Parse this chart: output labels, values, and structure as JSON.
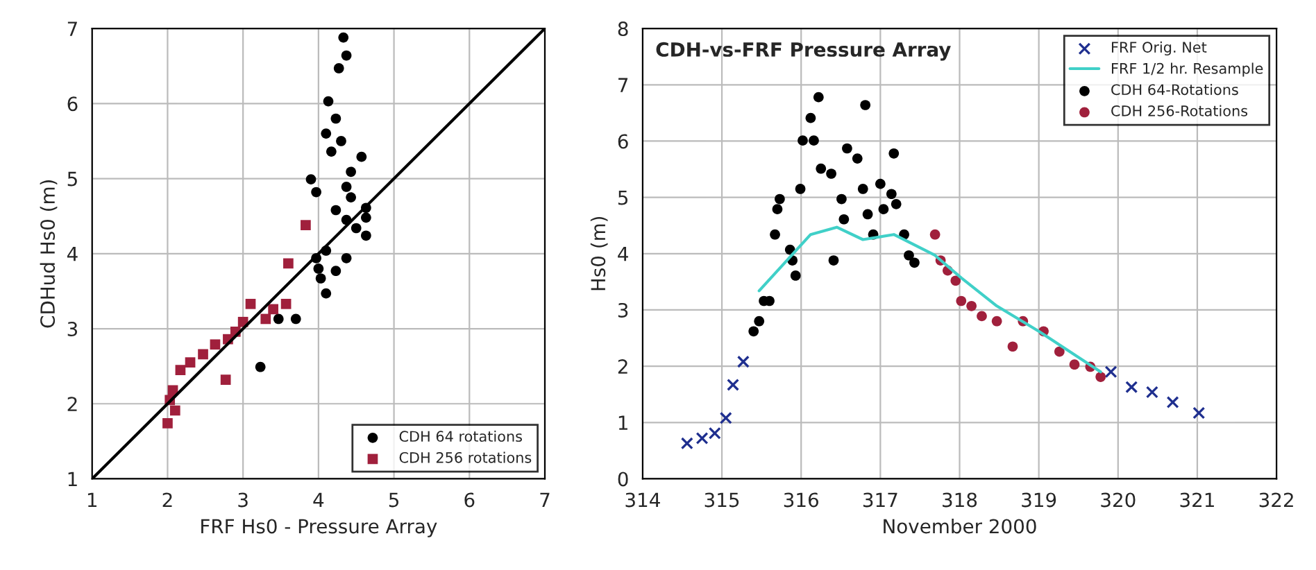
{
  "chart_data": [
    {
      "type": "scatter",
      "xlabel": "FRF Hs0 - Pressure Array",
      "ylabel": "CDHud Hs0 (m)",
      "xlim": [
        1,
        7
      ],
      "ylim": [
        1,
        7
      ],
      "xticks": [
        1,
        2,
        3,
        4,
        5,
        6,
        7
      ],
      "yticks": [
        1,
        2,
        3,
        4,
        5,
        6,
        7
      ],
      "grid": true,
      "legend": "bottom right",
      "series": [
        {
          "name": "CDH 64 rotations",
          "color": "#000000",
          "marker": "circle",
          "x": [
            4.33,
            4.37,
            4.27,
            4.13,
            4.23,
            4.1,
            4.3,
            4.17,
            4.57,
            3.9,
            3.97,
            4.37,
            4.43,
            4.63,
            4.23,
            4.37,
            4.5,
            4.63,
            4.1,
            3.97,
            4.37,
            4.23,
            4.03,
            4.1,
            3.7,
            3.47,
            3.23,
            4.0,
            4.43,
            4.63
          ],
          "values": [
            6.88,
            6.64,
            6.47,
            6.03,
            5.8,
            5.6,
            5.5,
            5.36,
            5.29,
            4.99,
            4.82,
            4.89,
            4.75,
            4.61,
            4.58,
            4.45,
            4.34,
            4.24,
            4.04,
            3.94,
            3.94,
            3.77,
            3.67,
            3.47,
            3.13,
            3.13,
            2.49,
            3.8,
            5.09,
            4.48
          ]
        },
        {
          "name": "CDH 256 rotations",
          "color": "#a0203c",
          "marker": "square",
          "x": [
            3.83,
            3.6,
            3.57,
            3.4,
            3.1,
            3.0,
            2.8,
            2.63,
            2.47,
            2.3,
            2.17,
            2.77,
            2.03,
            2.1,
            2.0,
            2.07,
            2.9,
            3.3
          ],
          "values": [
            4.38,
            3.87,
            3.33,
            3.26,
            3.33,
            3.09,
            2.86,
            2.79,
            2.66,
            2.55,
            2.45,
            2.32,
            2.05,
            1.91,
            1.74,
            2.18,
            2.96,
            3.13
          ]
        },
        {
          "type": "line",
          "color": "#000000",
          "marker": "none",
          "x": [
            1,
            7
          ],
          "values": [
            1,
            7
          ]
        }
      ]
    },
    {
      "type": "scatter",
      "title": "CDH-vs-FRF Pressure Array",
      "xlabel": "November 2000",
      "ylabel": "Hs0 (m)",
      "xlim": [
        314,
        322
      ],
      "ylim": [
        0,
        8
      ],
      "xticks": [
        314,
        315,
        316,
        317,
        318,
        319,
        320,
        321,
        322
      ],
      "yticks": [
        0,
        1,
        2,
        3,
        4,
        5,
        6,
        7,
        8
      ],
      "grid": true,
      "legend": "top right",
      "series": [
        {
          "name": "FRF Orig. Net",
          "color": "#1f2f8f",
          "marker": "cross",
          "x": [
            314.56,
            314.75,
            314.91,
            315.05,
            315.14,
            315.27,
            319.91,
            320.17,
            320.43,
            320.69,
            321.02
          ],
          "values": [
            0.63,
            0.72,
            0.81,
            1.08,
            1.67,
            2.08,
            1.9,
            1.63,
            1.54,
            1.36,
            1.17
          ]
        },
        {
          "name": "FRF 1/2 hr. Resample",
          "type": "line",
          "color": "#40d0c8",
          "marker": "none",
          "x": [
            315.47,
            316.12,
            316.45,
            316.78,
            317.17,
            317.69,
            318.02,
            318.47,
            319.0,
            319.39,
            319.78
          ],
          "values": [
            3.34,
            4.34,
            4.47,
            4.25,
            4.34,
            3.97,
            3.57,
            3.07,
            2.62,
            2.26,
            1.9
          ]
        },
        {
          "name": "CDH 64-Rotations",
          "color": "#000000",
          "marker": "circle",
          "x": [
            315.4,
            315.47,
            315.53,
            315.6,
            315.67,
            315.7,
            315.73,
            315.86,
            315.89,
            315.93,
            315.99,
            316.02,
            316.12,
            316.22,
            316.16,
            316.25,
            316.38,
            316.41,
            316.51,
            316.54,
            316.58,
            316.71,
            316.81,
            316.78,
            316.84,
            316.91,
            317.0,
            317.04,
            317.14,
            317.17,
            317.2,
            317.3,
            317.36,
            317.43
          ],
          "values": [
            2.62,
            2.8,
            3.16,
            3.16,
            4.34,
            4.79,
            4.97,
            4.07,
            3.88,
            3.61,
            5.15,
            6.01,
            6.41,
            6.78,
            6.01,
            5.51,
            5.42,
            3.88,
            4.97,
            4.61,
            5.87,
            5.69,
            6.64,
            5.15,
            4.7,
            4.34,
            5.24,
            4.79,
            5.06,
            5.78,
            4.88,
            4.34,
            3.97,
            3.84
          ]
        },
        {
          "name": "CDH 256-Rotations",
          "color": "#a0203c",
          "marker": "circle",
          "x": [
            317.69,
            317.76,
            317.85,
            317.95,
            318.02,
            318.15,
            318.28,
            318.47,
            318.67,
            318.8,
            319.06,
            319.26,
            319.45,
            319.65,
            319.78
          ],
          "values": [
            4.34,
            3.88,
            3.7,
            3.52,
            3.16,
            3.07,
            2.89,
            2.8,
            2.35,
            2.8,
            2.62,
            2.26,
            2.03,
            1.99,
            1.81
          ]
        }
      ]
    }
  ]
}
